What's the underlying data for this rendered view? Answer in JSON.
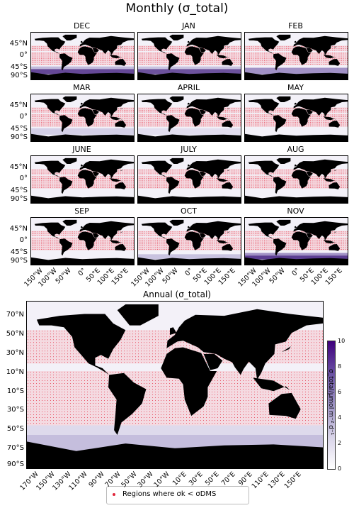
{
  "title": "Monthly (σ_total)",
  "annual_title": "Annual (σ_total)",
  "months": [
    "DEC",
    "JAN",
    "FEB",
    "MAR",
    "APRIL",
    "MAY",
    "JUNE",
    "JULY",
    "AUG",
    "SEP",
    "OCT",
    "NOV"
  ],
  "monthly_lat_labels": [
    "45°N",
    "0°",
    "45°S",
    "90°S"
  ],
  "monthly_lon_labels": [
    "150°W",
    "100°W",
    "50°W",
    "0°",
    "50°E",
    "100°E",
    "150°E"
  ],
  "annual_lat_labels": [
    "70°N",
    "50°N",
    "30°N",
    "10°N",
    "10°S",
    "30°S",
    "50°S",
    "70°S",
    "90°S"
  ],
  "annual_lon_labels": [
    "170°W",
    "150°W",
    "130°W",
    "110°W",
    "90°W",
    "70°W",
    "50°W",
    "30°W",
    "10°W",
    "10°E",
    "30°E",
    "50°E",
    "70°E",
    "90°E",
    "110°E",
    "130°E",
    "150°E"
  ],
  "colorbar": {
    "label": "σ_total/μmol m⁻² d⁻¹",
    "ticks": [
      "10",
      "8",
      "6",
      "4",
      "2",
      "0"
    ],
    "colors": [
      "#ffffff",
      "#d8d3e8",
      "#9e94c6",
      "#6a51a3",
      "#3f007d"
    ]
  },
  "legend": {
    "label": "Regions where σk < σDMS",
    "dot_color": "#e0263b"
  },
  "colors": {
    "land": "#000000",
    "ocean_low": "#f3f1f8",
    "stipple": "#e63b4e",
    "high": "#4b2a86"
  }
}
